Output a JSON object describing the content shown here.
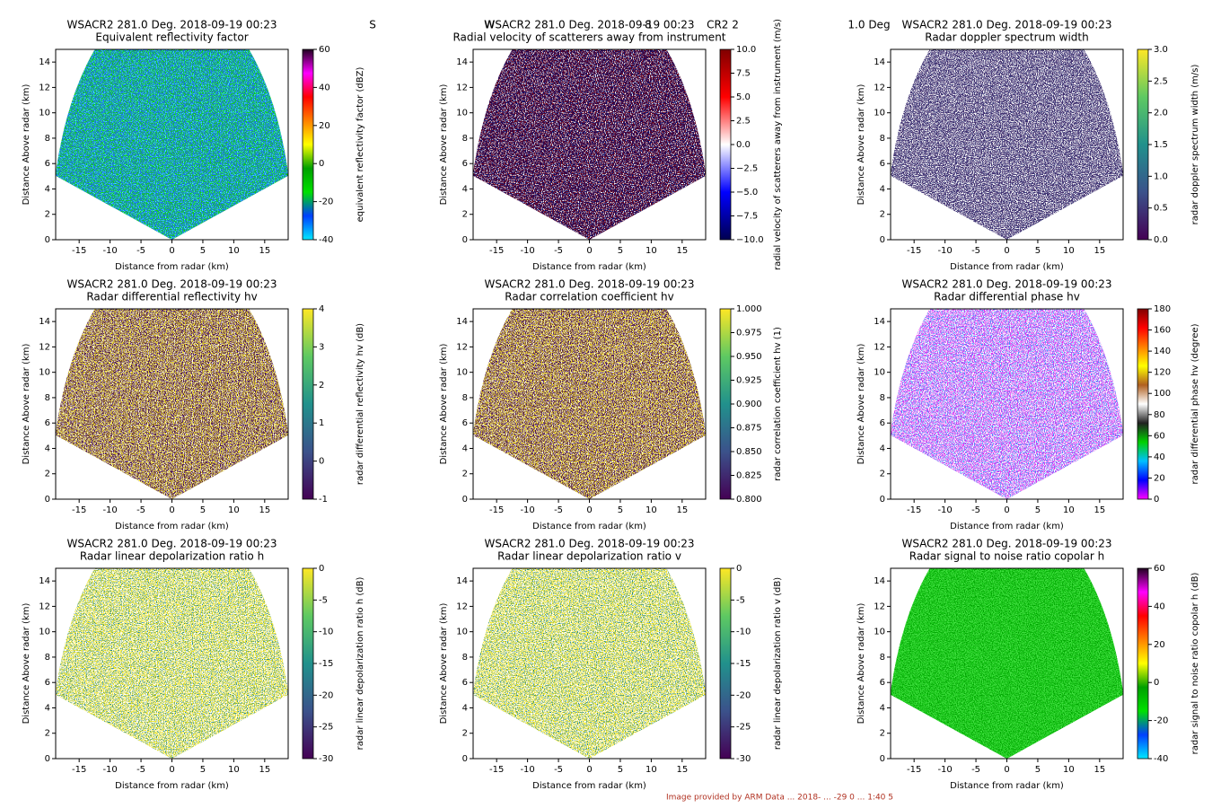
{
  "chart_data": [
    {
      "type": "rhi",
      "title": "WSACR2 281.0 Deg. 2018-09-19 00:23",
      "subtitle": "Equivalent reflectivity factor",
      "xlabel": "Distance from radar (km)",
      "ylabel": "Distance Above radar  (km)",
      "xlim": [
        -18.8,
        18.8
      ],
      "ylim": [
        0,
        15
      ],
      "xticks": [
        -15,
        -10,
        -5,
        0,
        5,
        10,
        15
      ],
      "yticks": [
        0,
        2,
        4,
        6,
        8,
        10,
        12,
        14
      ],
      "field_colors": [
        "#10d010",
        "#1e6cff",
        "#40e8ff"
      ],
      "colorbar_label": "equivalent reflectivity factor (dBZ)",
      "clim": [
        -40,
        60
      ],
      "cticks": [
        -40,
        -20,
        0,
        20,
        40,
        60
      ],
      "colors": [
        "#00e8ff",
        "#0040ff",
        "#00e000",
        "#00a000",
        "#ffff00",
        "#ff8000",
        "#ff0000",
        "#ff00ff",
        "#200020"
      ]
    },
    {
      "type": "rhi",
      "title": "WSACR2 281.0 Deg. 2018-09-19 00:23",
      "subtitle": "Radial velocity of scatterers away from instrument",
      "xlabel": "Distance from radar (km)",
      "ylabel": "Distance Above radar  (km)",
      "xlim": [
        -18.8,
        18.8
      ],
      "ylim": [
        0,
        15
      ],
      "xticks": [
        -15,
        -10,
        -5,
        0,
        5,
        10,
        15
      ],
      "yticks": [
        0,
        2,
        4,
        6,
        8,
        10,
        12,
        14
      ],
      "field_colors": [
        "#700018",
        "#10106a",
        "#ffffff"
      ],
      "colorbar_label": "radial velocity of scatterers away from instrument (m/s)",
      "clim": [
        -10,
        10
      ],
      "cticks": [
        {
          "value": -10,
          "label": "−10.0"
        },
        {
          "value": -7.5,
          "label": "−7.5"
        },
        {
          "value": -5,
          "label": "−5.0"
        },
        {
          "value": -2.5,
          "label": "−2.5"
        },
        {
          "value": 0,
          "label": "0.0"
        },
        {
          "value": 2.5,
          "label": "2.5"
        },
        {
          "value": 5,
          "label": "5.0"
        },
        {
          "value": 7.5,
          "label": "7.5"
        },
        {
          "value": 10,
          "label": "10.0"
        }
      ],
      "colors": [
        "#000050",
        "#0000ff",
        "#ffffff",
        "#ff0000",
        "#800000"
      ]
    },
    {
      "type": "rhi",
      "title": "WSACR2 281.0 Deg. 2018-09-19 00:23",
      "subtitle": "Radar doppler spectrum width",
      "xlabel": "Distance from radar (km)",
      "ylabel": "Distance Above radar  (km)",
      "xlim": [
        -18.8,
        18.8
      ],
      "ylim": [
        0,
        15
      ],
      "xticks": [
        -15,
        -10,
        -5,
        0,
        5,
        10,
        15
      ],
      "yticks": [
        0,
        2,
        4,
        6,
        8,
        10,
        12,
        14
      ],
      "field_colors": [
        "#ffffff",
        "#402a6a",
        "#3a3f80"
      ],
      "colorbar_label": "radar doppler spectrum width (m/s)",
      "clim": [
        0,
        3
      ],
      "cticks": [
        {
          "value": 0,
          "label": "0.0"
        },
        {
          "value": 0.5,
          "label": "0.5"
        },
        {
          "value": 1,
          "label": "1.0"
        },
        {
          "value": 1.5,
          "label": "1.5"
        },
        {
          "value": 2,
          "label": "2.0"
        },
        {
          "value": 2.5,
          "label": "2.5"
        },
        {
          "value": 3,
          "label": "3.0"
        }
      ],
      "colors": [
        "#440154",
        "#3b528b",
        "#21918c",
        "#5ec962",
        "#fde725"
      ]
    },
    {
      "type": "rhi",
      "title": "WSACR2 281.0 Deg. 2018-09-19 00:23",
      "subtitle": "Radar differential reflectivity hv",
      "xlabel": "Distance from radar (km)",
      "ylabel": "Distance Above radar  (km)",
      "xlim": [
        -18.8,
        18.8
      ],
      "ylim": [
        0,
        15
      ],
      "xticks": [
        -15,
        -10,
        -5,
        0,
        5,
        10,
        15
      ],
      "yticks": [
        0,
        2,
        4,
        6,
        8,
        10,
        12,
        14
      ],
      "field_colors": [
        "#f2e021",
        "#44105a",
        "#ffffff"
      ],
      "colorbar_label": "radar differential reflectivity hv (dB)",
      "clim": [
        -1,
        4
      ],
      "cticks": [
        -1,
        0,
        1,
        2,
        3,
        4
      ],
      "colors": [
        "#440154",
        "#3b528b",
        "#21918c",
        "#5ec962",
        "#fde725"
      ]
    },
    {
      "type": "rhi",
      "title": "WSACR2 281.0 Deg. 2018-09-19 00:23",
      "subtitle": "Radar correlation coefficient hv",
      "xlabel": "Distance from radar (km)",
      "ylabel": "Distance Above radar  (km)",
      "xlim": [
        -18.8,
        18.8
      ],
      "ylim": [
        0,
        15
      ],
      "xticks": [
        -15,
        -10,
        -5,
        0,
        5,
        10,
        15
      ],
      "yticks": [
        0,
        2,
        4,
        6,
        8,
        10,
        12,
        14
      ],
      "field_colors": [
        "#f5e020",
        "#44105a",
        "#ffffff"
      ],
      "colorbar_label": "radar correlation coefficient hv (1)",
      "clim": [
        0.8,
        1
      ],
      "cticks": [
        {
          "value": 0.8,
          "label": "0.800"
        },
        {
          "value": 0.825,
          "label": "0.825"
        },
        {
          "value": 0.85,
          "label": "0.850"
        },
        {
          "value": 0.875,
          "label": "0.875"
        },
        {
          "value": 0.9,
          "label": "0.900"
        },
        {
          "value": 0.925,
          "label": "0.925"
        },
        {
          "value": 0.95,
          "label": "0.950"
        },
        {
          "value": 0.975,
          "label": "0.975"
        },
        {
          "value": 1,
          "label": "1.000"
        }
      ],
      "colors": [
        "#440154",
        "#3b528b",
        "#21918c",
        "#5ec962",
        "#fde725"
      ]
    },
    {
      "type": "rhi",
      "title": "WSACR2 281.0 Deg. 2018-09-19 00:23",
      "subtitle": "Radar differential phase hv",
      "xlabel": "Distance from radar (km)",
      "ylabel": "Distance Above radar  (km)",
      "xlim": [
        -18.8,
        18.8
      ],
      "ylim": [
        0,
        15
      ],
      "xticks": [
        -15,
        -10,
        -5,
        0,
        5,
        10,
        15
      ],
      "yticks": [
        0,
        2,
        4,
        6,
        8,
        10,
        12,
        14
      ],
      "field_colors": [
        "#e030f0",
        "#ffffff",
        "#30a0ff"
      ],
      "colorbar_label": "radar differential phase hv (degree)",
      "clim": [
        0,
        180
      ],
      "cticks": [
        0,
        20,
        40,
        60,
        80,
        100,
        120,
        140,
        160,
        180
      ],
      "colors": [
        "#ff00ff",
        "#0000ff",
        "#00c0ff",
        "#00d000",
        "#202020",
        "#ffffff",
        "#b06020",
        "#ffff00",
        "#ff8000",
        "#ff0000",
        "#800000"
      ]
    },
    {
      "type": "rhi",
      "title": "WSACR2 281.0 Deg. 2018-09-19 00:23",
      "subtitle": "Radar linear depolarization ratio h",
      "xlabel": "Distance from radar (km)",
      "ylabel": "Distance Above radar  (km)",
      "xlim": [
        -18.8,
        18.8
      ],
      "ylim": [
        0,
        15
      ],
      "xticks": [
        -15,
        -10,
        -5,
        0,
        5,
        10,
        15
      ],
      "yticks": [
        0,
        2,
        4,
        6,
        8,
        10,
        12,
        14
      ],
      "field_colors": [
        "#f0e41e",
        "#ffffff",
        "#2a8c8a"
      ],
      "colorbar_label": "radar linear depolarization ratio h (dB)",
      "clim": [
        -30,
        0
      ],
      "cticks": [
        -30,
        -25,
        -20,
        -15,
        -10,
        -5,
        0
      ],
      "colors": [
        "#440154",
        "#3b528b",
        "#21918c",
        "#5ec962",
        "#fde725"
      ]
    },
    {
      "type": "rhi",
      "title": "WSACR2 281.0 Deg. 2018-09-19 00:23",
      "subtitle": "Radar linear depolarization ratio v",
      "xlabel": "Distance from radar (km)",
      "ylabel": "Distance Above radar  (km)",
      "xlim": [
        -18.8,
        18.8
      ],
      "ylim": [
        0,
        15
      ],
      "xticks": [
        -15,
        -10,
        -5,
        0,
        5,
        10,
        15
      ],
      "yticks": [
        0,
        2,
        4,
        6,
        8,
        10,
        12,
        14
      ],
      "field_colors": [
        "#f0e41e",
        "#ffffff",
        "#2a8c8a"
      ],
      "colorbar_label": "radar linear depolarization ratio v (dB)",
      "clim": [
        -30,
        0
      ],
      "cticks": [
        -30,
        -25,
        -20,
        -15,
        -10,
        -5,
        0
      ],
      "colors": [
        "#440154",
        "#3b528b",
        "#21918c",
        "#5ec962",
        "#fde725"
      ]
    },
    {
      "type": "rhi",
      "title": "WSACR2 281.0 Deg. 2018-09-19 00:23",
      "subtitle": "Radar signal to noise ratio copolar h",
      "xlabel": "Distance from radar (km)",
      "ylabel": "Distance Above radar  (km)",
      "xlim": [
        -18.8,
        18.8
      ],
      "ylim": [
        0,
        15
      ],
      "xticks": [
        -15,
        -10,
        -5,
        0,
        5,
        10,
        15
      ],
      "yticks": [
        0,
        2,
        4,
        6,
        8,
        10,
        12,
        14
      ],
      "field_colors": [
        "#10c010",
        "#40e040",
        "#00a000"
      ],
      "colorbar_label": "radar signal to noise ratio copolar h (dB)",
      "clim": [
        -40,
        60
      ],
      "cticks": [
        -40,
        -20,
        0,
        20,
        40,
        60
      ],
      "colors": [
        "#00e8ff",
        "#0040ff",
        "#00e000",
        "#00a000",
        "#ffff00",
        "#ff8000",
        "#ff0000",
        "#ff00ff",
        "#200020"
      ]
    }
  ],
  "annotations": [
    "S",
    "W",
    "8",
    "CR2 2",
    "1.0 Deg"
  ],
  "footer": "Image provided by ARM Data ... 2018- ... -29 0 ... 1:40 5"
}
